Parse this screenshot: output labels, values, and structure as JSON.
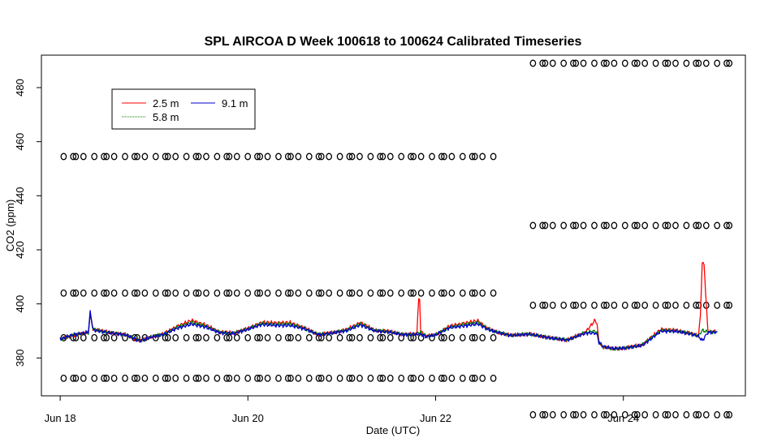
{
  "chart_data": {
    "type": "line",
    "title": "SPL AIRCOA D  Week 100618 to 100624  Calibrated Timeseries",
    "xlabel": "Date (UTC)",
    "ylabel": "CO2 (ppm)",
    "x_unit": "days since Jun 18 00:00 UTC",
    "xlim": [
      -0.2,
      7.3
    ],
    "ylim": [
      366,
      492
    ],
    "x_ticks": [
      {
        "value": 0,
        "label": "Jun 18"
      },
      {
        "value": 2,
        "label": "Jun 20"
      },
      {
        "value": 4,
        "label": "Jun 22"
      },
      {
        "value": 6,
        "label": "Jun 24"
      }
    ],
    "y_ticks": [
      {
        "value": 380,
        "label": "380"
      },
      {
        "value": 400,
        "label": "400"
      },
      {
        "value": 420,
        "label": "420"
      },
      {
        "value": 440,
        "label": "440"
      },
      {
        "value": 460,
        "label": "460"
      },
      {
        "value": 480,
        "label": "480"
      }
    ],
    "grid": false,
    "legend": {
      "placement": "top-left",
      "entries": [
        {
          "label": "2.5 m",
          "color": "#ff0000"
        },
        {
          "label": "5.8 m",
          "color": "#008000"
        },
        {
          "label": "9.1 m",
          "color": "#0000cc"
        }
      ]
    },
    "series": [
      {
        "name": "2.5 m",
        "color": "#ff0000",
        "x": [
          0.0,
          0.15,
          0.3,
          0.32,
          0.35,
          0.5,
          0.7,
          0.85,
          0.95,
          1.1,
          1.25,
          1.4,
          1.55,
          1.7,
          1.85,
          2.0,
          2.15,
          2.3,
          2.45,
          2.6,
          2.75,
          2.9,
          3.05,
          3.2,
          3.35,
          3.5,
          3.65,
          3.8,
          3.82,
          3.83,
          3.84,
          3.86,
          3.9,
          4.0,
          4.15,
          4.3,
          4.45,
          4.55,
          4.65,
          4.8,
          5.0,
          5.2,
          5.4,
          5.6,
          5.7,
          5.72,
          5.74,
          5.78,
          5.9,
          6.0,
          6.2,
          6.4,
          6.55,
          6.7,
          6.8,
          6.82,
          6.84,
          6.86,
          6.9,
          6.95,
          7.0
        ],
        "y": [
          386.8,
          388.5,
          389.4,
          396.3,
          390.8,
          389.6,
          388.6,
          386.4,
          387.6,
          388.9,
          391.8,
          393.9,
          392.2,
          389.6,
          389.3,
          390.9,
          393.2,
          393.0,
          393.1,
          391.2,
          388.7,
          389.4,
          390.5,
          393.1,
          390.3,
          389.9,
          388.7,
          388.9,
          402.0,
          402.1,
          390.0,
          389.5,
          388.0,
          388.6,
          391.8,
          392.8,
          393.8,
          391.0,
          389.6,
          388.4,
          388.9,
          387.6,
          386.6,
          389.7,
          394.0,
          392.5,
          386.0,
          384.0,
          383.3,
          383.6,
          384.9,
          390.6,
          390.3,
          389.3,
          388.2,
          395.0,
          415.2,
          414.5,
          390.0,
          389.6,
          389.8
        ]
      },
      {
        "name": "5.8 m",
        "color": "#008000",
        "x": [
          0.0,
          0.15,
          0.3,
          0.32,
          0.35,
          0.5,
          0.7,
          0.85,
          0.95,
          1.1,
          1.25,
          1.4,
          1.55,
          1.7,
          1.85,
          2.0,
          2.15,
          2.3,
          2.45,
          2.6,
          2.75,
          2.9,
          3.05,
          3.2,
          3.35,
          3.5,
          3.65,
          3.8,
          3.82,
          3.84,
          3.9,
          4.0,
          4.15,
          4.3,
          4.45,
          4.55,
          4.65,
          4.8,
          5.0,
          5.2,
          5.4,
          5.6,
          5.7,
          5.72,
          5.74,
          5.78,
          5.9,
          6.0,
          6.2,
          6.4,
          6.55,
          6.7,
          6.8,
          6.84,
          6.9,
          6.95,
          7.0
        ],
        "y": [
          386.9,
          388.6,
          389.4,
          396.5,
          390.6,
          389.5,
          388.6,
          386.4,
          387.6,
          388.8,
          391.4,
          393.2,
          391.8,
          389.5,
          389.2,
          390.8,
          392.8,
          392.5,
          392.6,
          391.0,
          388.7,
          389.3,
          390.3,
          392.7,
          390.2,
          389.8,
          388.7,
          388.8,
          389.5,
          389.4,
          388.0,
          388.6,
          391.5,
          392.3,
          393.2,
          390.9,
          389.6,
          388.4,
          388.9,
          387.6,
          386.7,
          389.4,
          390.0,
          389.2,
          386.0,
          384.2,
          383.4,
          383.6,
          384.8,
          390.2,
          390.1,
          389.2,
          388.2,
          390.2,
          389.6,
          389.6,
          389.8
        ]
      },
      {
        "name": "9.1 m",
        "color": "#0000cc",
        "x": [
          0.0,
          0.15,
          0.3,
          0.32,
          0.35,
          0.5,
          0.7,
          0.85,
          0.95,
          1.1,
          1.25,
          1.4,
          1.55,
          1.7,
          1.85,
          2.0,
          2.15,
          2.3,
          2.45,
          2.6,
          2.75,
          2.9,
          3.05,
          3.2,
          3.35,
          3.5,
          3.65,
          3.8,
          3.82,
          3.84,
          3.9,
          4.0,
          4.15,
          4.3,
          4.45,
          4.55,
          4.65,
          4.8,
          5.0,
          5.2,
          5.4,
          5.6,
          5.7,
          5.72,
          5.74,
          5.78,
          5.9,
          6.0,
          6.2,
          6.4,
          6.55,
          6.7,
          6.8,
          6.84,
          6.9,
          6.95,
          7.0
        ],
        "y": [
          387.0,
          388.7,
          389.5,
          397.0,
          390.4,
          389.4,
          388.5,
          386.3,
          387.5,
          388.7,
          391.0,
          392.5,
          391.4,
          389.3,
          389.0,
          390.6,
          392.4,
          392.0,
          392.0,
          390.8,
          388.6,
          389.2,
          390.1,
          392.2,
          390.0,
          389.6,
          388.6,
          388.7,
          388.9,
          388.8,
          387.9,
          388.5,
          391.2,
          391.8,
          392.6,
          390.7,
          389.5,
          388.3,
          388.8,
          387.5,
          386.6,
          389.2,
          389.2,
          388.6,
          385.8,
          384.3,
          383.5,
          383.6,
          384.6,
          389.9,
          389.9,
          389.0,
          388.1,
          386.4,
          389.4,
          389.5,
          389.7
        ]
      }
    ],
    "calibration_markers": [
      {
        "name": "cal-set-1-week-start",
        "x_start": 0.03,
        "x_end": 4.68,
        "y_values": [
          372.5,
          387.5,
          404.0,
          454.5
        ]
      },
      {
        "name": "cal-set-2-week-end",
        "x_start": 5.03,
        "x_end": 7.12,
        "y_values": [
          359.0,
          399.5,
          429.0,
          489.0
        ]
      }
    ]
  }
}
